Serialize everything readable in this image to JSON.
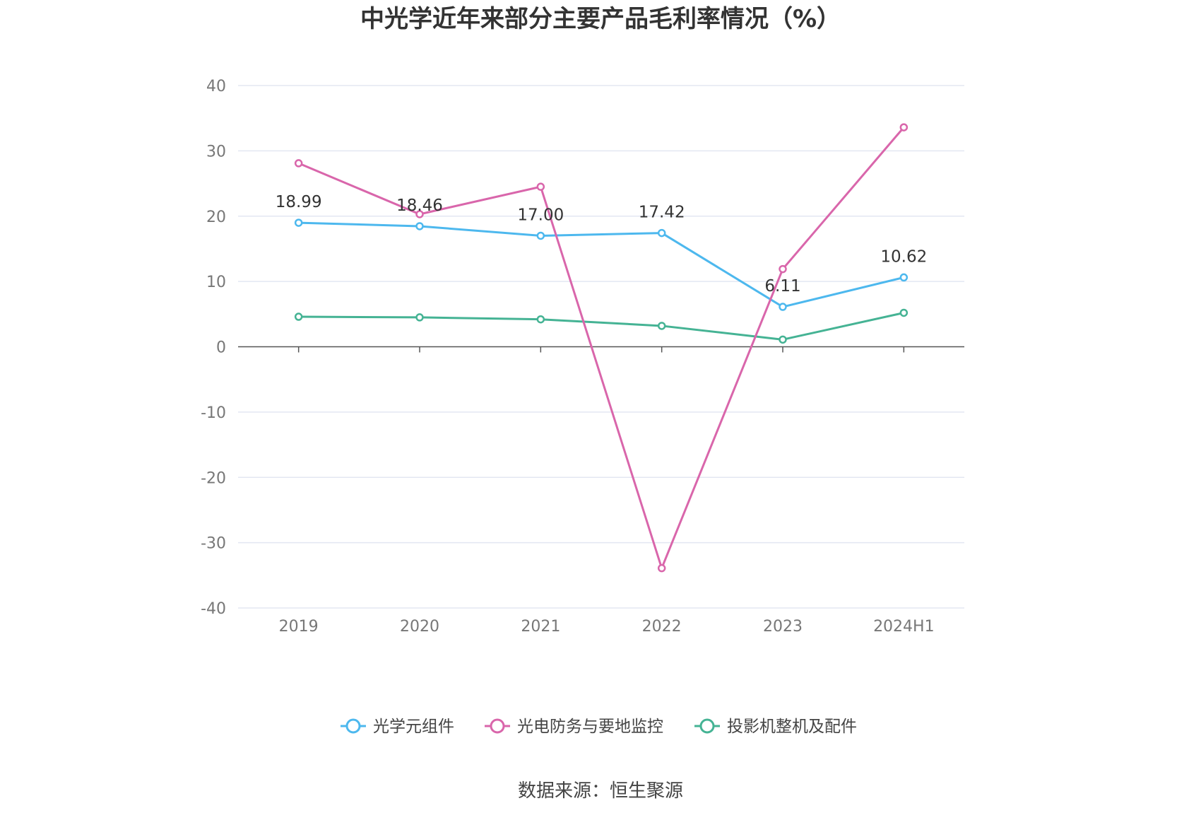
{
  "chart_data": {
    "type": "line",
    "title": "中光学近年来部分主要产品毛利率情况（%）",
    "categories": [
      "2019",
      "2020",
      "2021",
      "2022",
      "2023",
      "2024H1"
    ],
    "ylim": [
      -40,
      40
    ],
    "yticks": [
      40,
      30,
      20,
      10,
      0,
      -10,
      -20,
      -30,
      -40
    ],
    "grid": true,
    "legend_position": "bottom",
    "series": [
      {
        "name": "光学元组件",
        "color": "#4db8ee",
        "values": [
          18.99,
          18.46,
          17.0,
          17.42,
          6.11,
          10.62
        ],
        "labels": [
          "18.99",
          "18.46",
          "17.00",
          "17.42",
          "6.11",
          "10.62"
        ]
      },
      {
        "name": "光电防务与要地监控",
        "color": "#d966ab",
        "values": [
          28.1,
          20.3,
          24.5,
          -33.9,
          11.9,
          33.6
        ]
      },
      {
        "name": "投影机整机及配件",
        "color": "#45b394",
        "values": [
          4.6,
          4.5,
          4.2,
          3.2,
          1.1,
          5.2
        ]
      }
    ]
  },
  "source": "数据来源：恒生聚源"
}
